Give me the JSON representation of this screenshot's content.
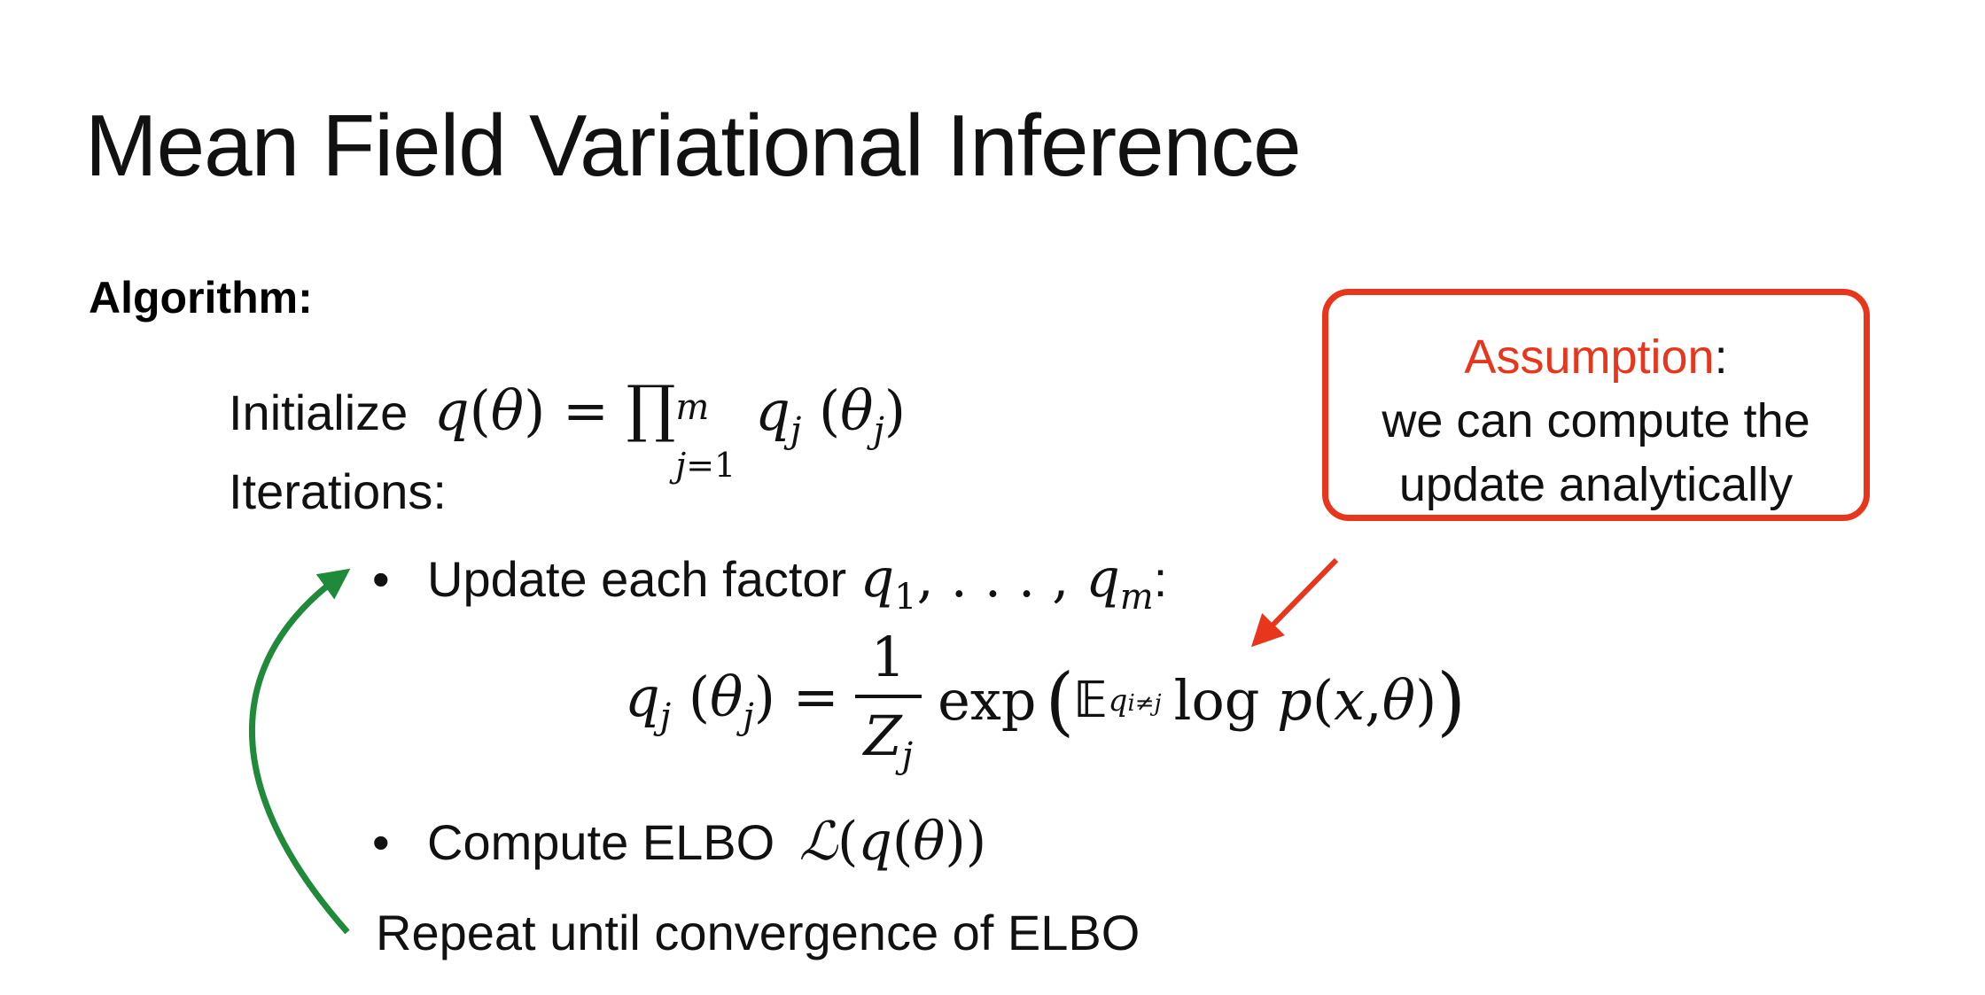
{
  "slide": {
    "title": "Mean Field Variational Inference",
    "algorithm_label": "Algorithm:",
    "initialize_label": "Initialize",
    "iterations_label": "Iterations:",
    "bullet_update_text": "Update each factor",
    "bullet_compute_text": "Compute ELBO",
    "repeat_text": "Repeat until convergence of ELBO",
    "callout": {
      "heading": "Assumption",
      "heading_suffix": ":",
      "body": "we can compute the update analytically"
    }
  },
  "colors": {
    "callout_red": "#e8361d",
    "loop_arrow_green": "#1e8a3a"
  }
}
